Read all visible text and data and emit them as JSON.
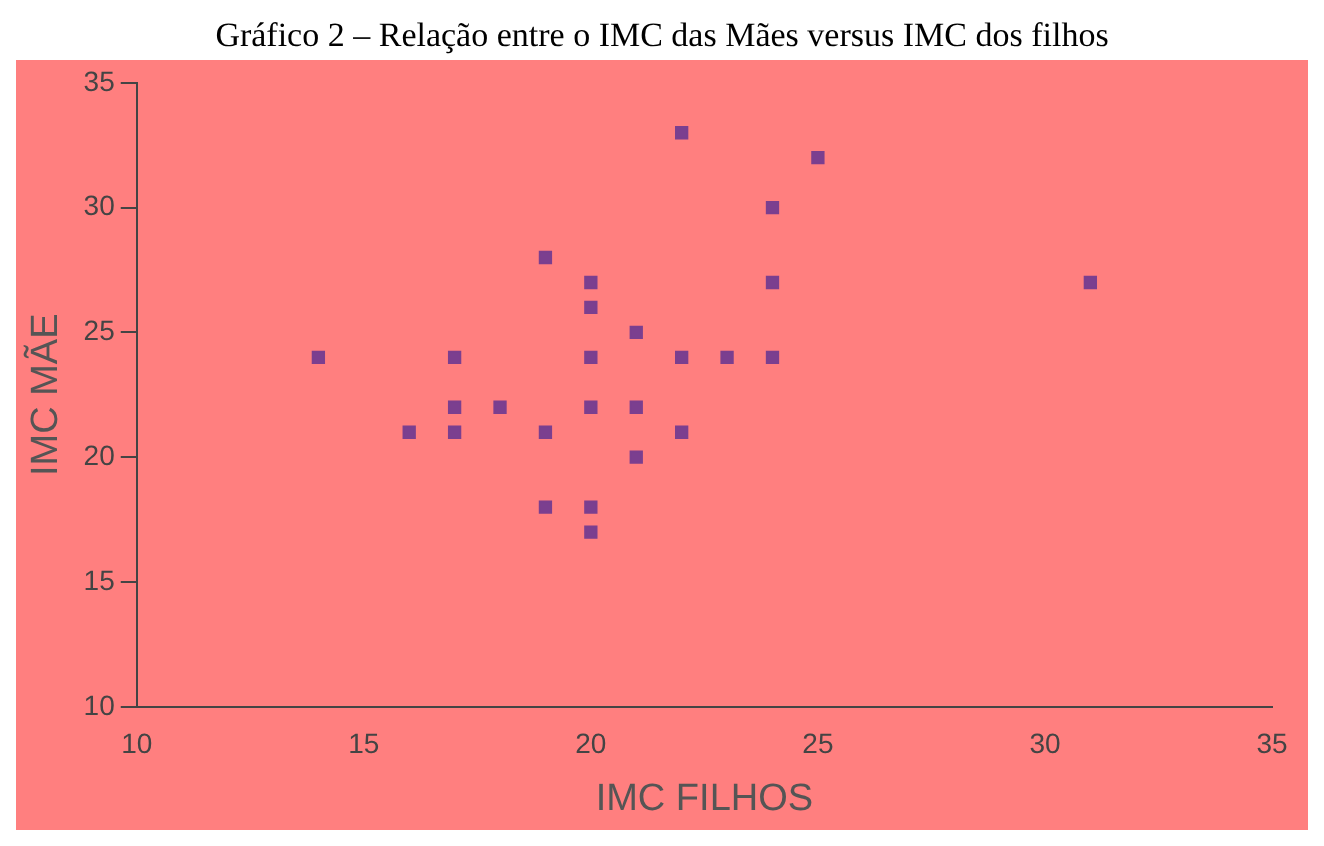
{
  "chart_data": {
    "type": "scatter",
    "title": "Gráfico 2 – Relação entre o IMC das Mães versus IMC dos filhos",
    "xlabel": "IMC FILHOS",
    "ylabel": "IMC MÃE",
    "xlim": [
      10,
      35
    ],
    "xticks": [
      10,
      15,
      20,
      25,
      30,
      35
    ],
    "ylim": [
      10,
      35
    ],
    "yticks": [
      10,
      15,
      20,
      25,
      30,
      35
    ],
    "grid": false,
    "legend": false,
    "marker": "square",
    "series": [
      {
        "color": "#7b3f8f",
        "x": [
          14,
          16,
          17,
          17,
          17,
          18,
          19,
          19,
          19,
          20,
          20,
          20,
          20,
          20,
          20,
          21,
          21,
          21,
          22,
          22,
          22,
          23,
          24,
          24,
          24,
          25,
          31
        ],
        "values": [
          24,
          21,
          24,
          22,
          21,
          22,
          28,
          21,
          18,
          27,
          26,
          24,
          22,
          18,
          17,
          25,
          22,
          20,
          33,
          24,
          21,
          24,
          30,
          27,
          24,
          32,
          27
        ]
      }
    ]
  }
}
